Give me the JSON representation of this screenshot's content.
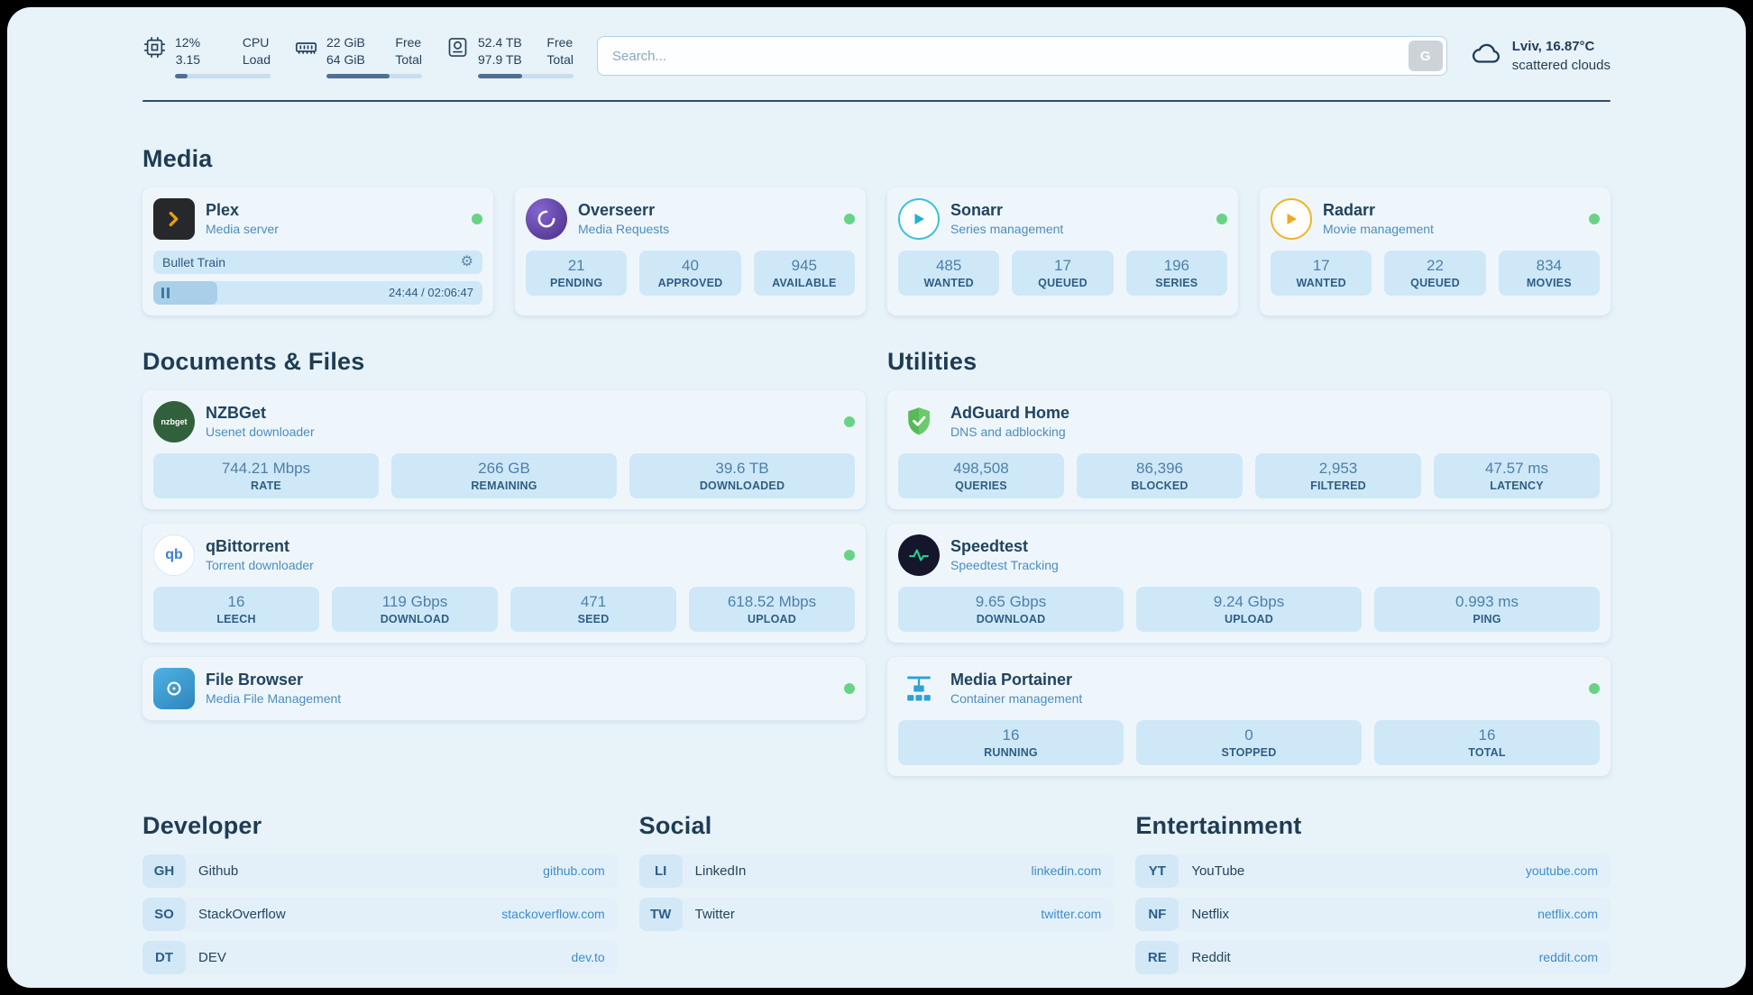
{
  "topbar": {
    "cpu": {
      "v1": "12%",
      "v2": "3.15",
      "l1": "CPU",
      "l2": "Load",
      "bar": "13%"
    },
    "ram": {
      "v1": "22 GiB",
      "v2": "64 GiB",
      "l1": "Free",
      "l2": "Total",
      "bar": "66%"
    },
    "disk": {
      "v1": "52.4 TB",
      "v2": "97.9 TB",
      "l1": "Free",
      "l2": "Total",
      "bar": "46%"
    },
    "search": {
      "placeholder": "Search...",
      "button": "G"
    },
    "weather": {
      "location": "Lviv, 16.87°C",
      "condition": "scattered clouds"
    }
  },
  "sections": {
    "media": "Media",
    "documents": "Documents & Files",
    "utilities": "Utilities",
    "developer": "Developer",
    "social": "Social",
    "entertainment": "Entertainment"
  },
  "media": {
    "plex": {
      "name": "Plex",
      "subtitle": "Media server",
      "now_playing": "Bullet Train",
      "time": "24:44 / 02:06:47",
      "progress": "19.5%"
    },
    "overseerr": {
      "name": "Overseerr",
      "subtitle": "Media Requests",
      "stats": [
        {
          "value": "21",
          "label": "PENDING"
        },
        {
          "value": "40",
          "label": "APPROVED"
        },
        {
          "value": "945",
          "label": "AVAILABLE"
        }
      ]
    },
    "sonarr": {
      "name": "Sonarr",
      "subtitle": "Series management",
      "stats": [
        {
          "value": "485",
          "label": "WANTED"
        },
        {
          "value": "17",
          "label": "QUEUED"
        },
        {
          "value": "196",
          "label": "SERIES"
        }
      ]
    },
    "radarr": {
      "name": "Radarr",
      "subtitle": "Movie management",
      "stats": [
        {
          "value": "17",
          "label": "WANTED"
        },
        {
          "value": "22",
          "label": "QUEUED"
        },
        {
          "value": "834",
          "label": "MOVIES"
        }
      ]
    }
  },
  "documents": {
    "nzbget": {
      "name": "NZBGet",
      "subtitle": "Usenet downloader",
      "stats": [
        {
          "value": "744.21 Mbps",
          "label": "RATE"
        },
        {
          "value": "266 GB",
          "label": "REMAINING"
        },
        {
          "value": "39.6 TB",
          "label": "DOWNLOADED"
        }
      ]
    },
    "qbittorrent": {
      "name": "qBittorrent",
      "subtitle": "Torrent downloader",
      "stats": [
        {
          "value": "16",
          "label": "LEECH"
        },
        {
          "value": "119 Gbps",
          "label": "DOWNLOAD"
        },
        {
          "value": "471",
          "label": "SEED"
        },
        {
          "value": "618.52 Mbps",
          "label": "UPLOAD"
        }
      ]
    },
    "filebrowser": {
      "name": "File Browser",
      "subtitle": "Media File Management"
    }
  },
  "utilities": {
    "adguard": {
      "name": "AdGuard Home",
      "subtitle": "DNS and adblocking",
      "stats": [
        {
          "value": "498,508",
          "label": "QUERIES"
        },
        {
          "value": "86,396",
          "label": "BLOCKED"
        },
        {
          "value": "2,953",
          "label": "FILTERED"
        },
        {
          "value": "47.57 ms",
          "label": "LATENCY"
        }
      ]
    },
    "speedtest": {
      "name": "Speedtest",
      "subtitle": "Speedtest Tracking",
      "stats": [
        {
          "value": "9.65 Gbps",
          "label": "DOWNLOAD"
        },
        {
          "value": "9.24 Gbps",
          "label": "UPLOAD"
        },
        {
          "value": "0.993 ms",
          "label": "PING"
        }
      ]
    },
    "portainer": {
      "name": "Media Portainer",
      "subtitle": "Container management",
      "stats": [
        {
          "value": "16",
          "label": "RUNNING"
        },
        {
          "value": "0",
          "label": "STOPPED"
        },
        {
          "value": "16",
          "label": "TOTAL"
        }
      ]
    }
  },
  "bookmarks": {
    "developer": [
      {
        "abbr": "GH",
        "name": "Github",
        "link": "github.com"
      },
      {
        "abbr": "SO",
        "name": "StackOverflow",
        "link": "stackoverflow.com"
      },
      {
        "abbr": "DT",
        "name": "DEV",
        "link": "dev.to"
      }
    ],
    "social": [
      {
        "abbr": "LI",
        "name": "LinkedIn",
        "link": "linkedin.com"
      },
      {
        "abbr": "TW",
        "name": "Twitter",
        "link": "twitter.com"
      }
    ],
    "entertainment": [
      {
        "abbr": "YT",
        "name": "YouTube",
        "link": "youtube.com"
      },
      {
        "abbr": "NF",
        "name": "Netflix",
        "link": "netflix.com"
      },
      {
        "abbr": "RE",
        "name": "Reddit",
        "link": "reddit.com"
      }
    ]
  },
  "icons": {
    "nzbget_text": "nzbget",
    "qb_text": "qb"
  }
}
